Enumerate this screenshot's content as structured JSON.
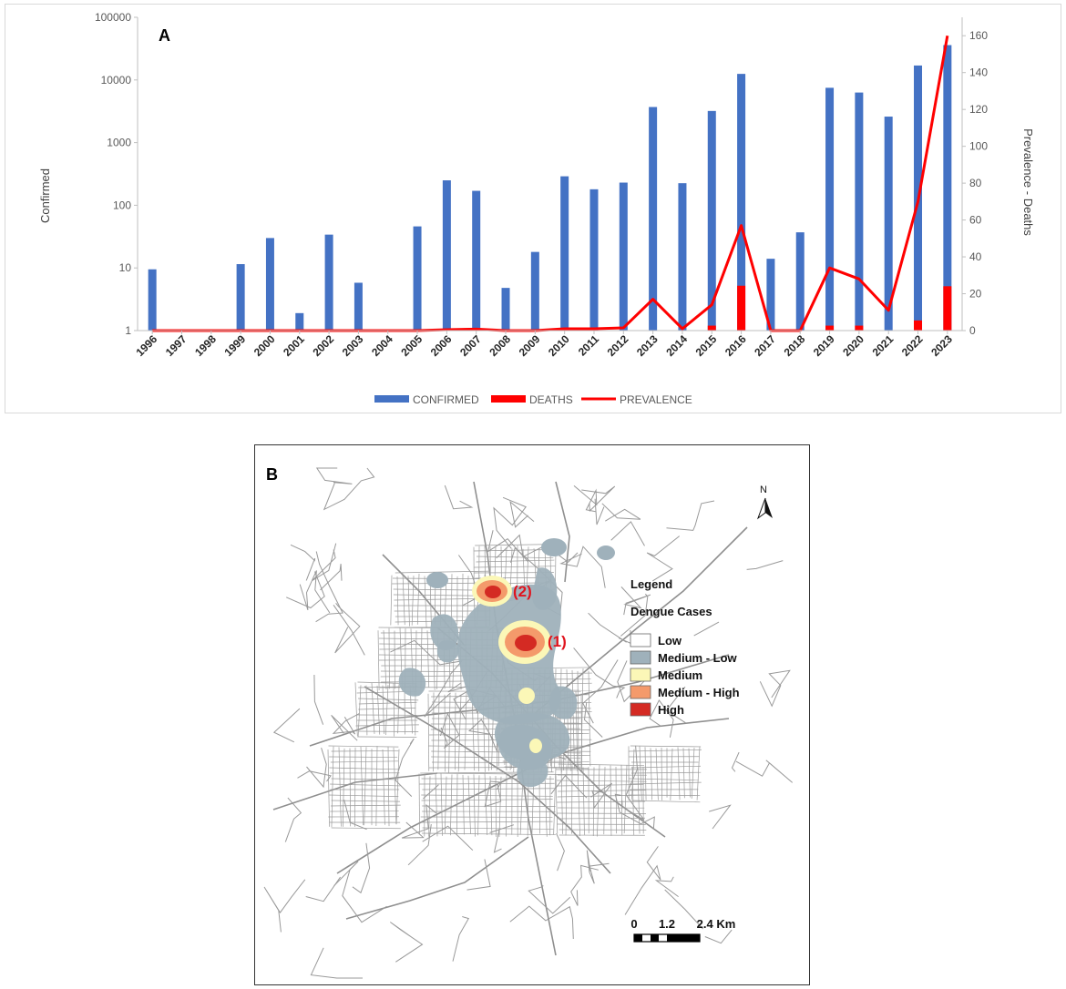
{
  "panel_a_label": "A",
  "panel_b_label": "B",
  "chart_data": {
    "type": "bar",
    "title": "",
    "categories": [
      "1996",
      "1997",
      "1998",
      "1999",
      "2000",
      "2001",
      "2002",
      "2003",
      "2004",
      "2005",
      "2006",
      "2007",
      "2008",
      "2009",
      "2010",
      "2011",
      "2012",
      "2013",
      "2014",
      "2015",
      "2016",
      "2017",
      "2018",
      "2019",
      "2020",
      "2021",
      "2022",
      "2023"
    ],
    "ylabel": "Confirmed",
    "y2label": "Prevalence - Deaths",
    "yscale": "log",
    "ylim": [
      1,
      100000
    ],
    "yticks": [
      "1",
      "10",
      "100",
      "1000",
      "10000",
      "100000"
    ],
    "y2lim": [
      0,
      170
    ],
    "y2ticks": [
      "0",
      "20",
      "40",
      "60",
      "80",
      "100",
      "120",
      "140",
      "160"
    ],
    "series": [
      {
        "name": "CONFIRMED",
        "type": "bar",
        "axis": "left",
        "color": "#4472c4",
        "values": [
          9.5,
          null,
          null,
          11.5,
          30,
          1.9,
          34,
          5.8,
          null,
          46,
          250,
          170,
          4.8,
          18,
          290,
          180,
          230,
          3700,
          225,
          3200,
          12500,
          14,
          37,
          7500,
          6300,
          2600,
          17000,
          36000
        ]
      },
      {
        "name": "DEATHS",
        "type": "bar",
        "axis": "left",
        "color": "#ff0000",
        "values": [
          null,
          null,
          null,
          null,
          null,
          null,
          null,
          null,
          null,
          null,
          null,
          null,
          null,
          null,
          null,
          null,
          null,
          null,
          null,
          1.2,
          5.2,
          null,
          null,
          1.2,
          1.2,
          null,
          1.45,
          5.1
        ]
      },
      {
        "name": "PREVALENCE",
        "type": "line",
        "axis": "right",
        "color": "#ff0000",
        "values": [
          0,
          0,
          0,
          0,
          0,
          0,
          0,
          0,
          0,
          0,
          0.5,
          0.8,
          0,
          0,
          1,
          1,
          1.5,
          17,
          1,
          14,
          57,
          0,
          0,
          34,
          28,
          11,
          70,
          160
        ]
      }
    ]
  },
  "map": {
    "north_label": "N",
    "legend_title": "Legend",
    "legend_subtitle": "Dengue Cases",
    "legend_items": [
      {
        "label": "Low",
        "color": "#ffffff"
      },
      {
        "label": "Medium - Low",
        "color": "#9fb1bb"
      },
      {
        "label": "Medium",
        "color": "#fbf7b7"
      },
      {
        "label": "Medium - High",
        "color": "#f49a6b"
      },
      {
        "label": "High",
        "color": "#d42a23"
      }
    ],
    "hotspot_labels": [
      "(1)",
      "(2)"
    ],
    "scale_labels": [
      "0",
      "1.2",
      "2.4 Km"
    ],
    "road_color": "#8a8a8a"
  }
}
